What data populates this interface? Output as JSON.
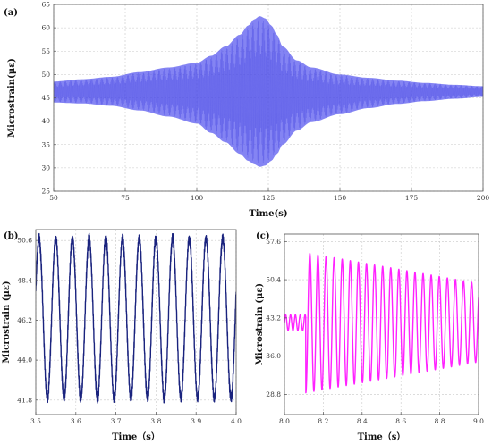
{
  "chart_data": [
    {
      "panel_label": "(a)",
      "type": "line",
      "xlabel": "Time(s)",
      "ylabel": "Microstrain(με)",
      "xlim": [
        50,
        200
      ],
      "ylim": [
        25,
        65
      ],
      "x_ticks": [
        "50",
        "75",
        "100",
        "125",
        "150",
        "175",
        "200"
      ],
      "y_ticks": [
        "25",
        "30",
        "35",
        "40",
        "45",
        "50",
        "55",
        "60",
        "65"
      ],
      "grid": true,
      "series": [
        {
          "color": "#5555ee",
          "envelope": {
            "x": [
              50,
              60,
              70,
              80,
              90,
              100,
              105,
              110,
              115,
              118,
              120,
              122,
              124,
              126,
              128,
              130,
              135,
              140,
              150,
              160,
              170,
              180,
              190,
              200
            ],
            "upper": [
              48.5,
              49.0,
              49.5,
              50.5,
              51.5,
              52.5,
              54.0,
              56.0,
              58.5,
              60.5,
              61.8,
              62.5,
              62.0,
              60.5,
              58.5,
              56.0,
              53.0,
              51.5,
              50.0,
              49.3,
              48.7,
              48.2,
              47.8,
              47.5
            ],
            "lower": [
              44.0,
              43.8,
              43.3,
              42.3,
              41.0,
              39.5,
              37.5,
              35.5,
              33.0,
              31.5,
              30.8,
              30.2,
              30.5,
              31.5,
              33.0,
              35.0,
              38.0,
              39.8,
              41.5,
              42.8,
              43.7,
              44.3,
              44.8,
              45.2
            ]
          }
        }
      ]
    },
    {
      "panel_label": "(b)",
      "type": "line",
      "xlabel": "Time（s）",
      "ylabel": "Microstrain (με)",
      "xlim": [
        3.5,
        4.0
      ],
      "ylim": [
        41.0,
        51.2
      ],
      "x_ticks": [
        "3.5",
        "3.6",
        "3.7",
        "3.8",
        "3.9",
        "4.0"
      ],
      "y_ticks": [
        "41.8",
        "44.0",
        "46.2",
        "48.4",
        "50.6"
      ],
      "grid": true,
      "series": [
        {
          "color": "#1a237e",
          "waveform": {
            "mean": 46.3,
            "amplitude": 4.4,
            "frequency_hz": 24.0,
            "phase_deg": 20
          }
        }
      ]
    },
    {
      "panel_label": "(c)",
      "type": "line",
      "xlabel": "Time（s）",
      "ylabel": "Microstrain (με)",
      "xlim": [
        8.0,
        9.0
      ],
      "ylim": [
        25.0,
        59.0
      ],
      "x_ticks": [
        "8.0",
        "8.2",
        "8.4",
        "8.6",
        "8.8",
        "9.0"
      ],
      "y_ticks": [
        "28.8",
        "36.0",
        "43.2",
        "50.4",
        "57.6"
      ],
      "grid": true,
      "series": [
        {
          "color": "#ff22ff",
          "waveform": {
            "mean": 42.3,
            "pre_onset_end_s": 8.11,
            "pre_onset_amplitude": 1.5,
            "pre_onset_frequency_hz": 40,
            "onset_amplitude": 13.2,
            "end_amplitude": 7.4,
            "frequency_hz": 24.0
          }
        }
      ]
    }
  ]
}
